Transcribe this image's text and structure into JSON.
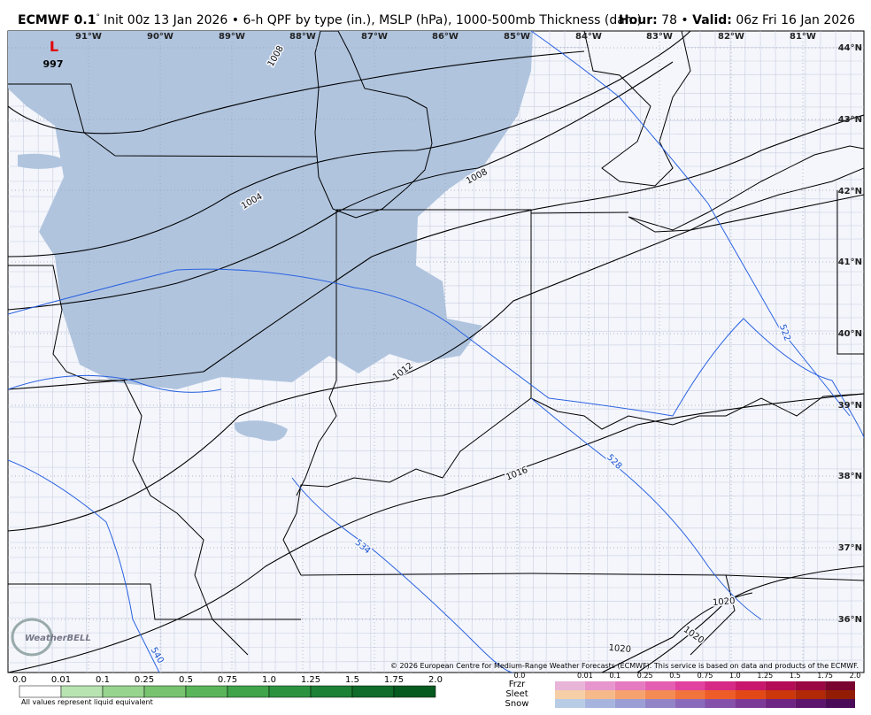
{
  "header": {
    "model": "ECMWF 0.1",
    "degree": "°",
    "title": "Init 00z 13 Jan 2026 • 6-h QPF by type (in.), MSLP (hPa), 1000-500mb Thickness (dam)",
    "hour_label": "Hour:",
    "hour": "78 •",
    "valid_label": "Valid:",
    "valid": "06z Fri 16 Jan 2026"
  },
  "map": {
    "longitudes": [
      "91°W",
      "90°W",
      "89°W",
      "88°W",
      "87°W",
      "86°W",
      "85°W",
      "84°W",
      "83°W",
      "82°W",
      "81°W"
    ],
    "latitudes": [
      "44°N",
      "43°N",
      "42°N",
      "41°N",
      "40°N",
      "39°N",
      "38°N",
      "37°N",
      "36°N"
    ],
    "low": {
      "symbol": "L",
      "pressure": "997"
    },
    "isobar_labels": [
      "1008",
      "1004",
      "1008",
      "1012",
      "1016",
      "1020",
      "1020",
      "1020"
    ],
    "thickness_labels": [
      "522",
      "528",
      "534",
      "540"
    ],
    "copyright": "© 2026 European Centre for Medium-Range Weather Forecasts (ECMWF). This service is based on data and products of the ECMWF.",
    "logo": "WeatherBELL"
  },
  "legend": {
    "qpf_ticks": [
      "0.0",
      "0.01",
      "0.1",
      "0.25",
      "0.5",
      "0.75",
      "1.0",
      "1.25",
      "1.5",
      "1.75",
      "2.0"
    ],
    "note": "All values represent liquid equivalent",
    "types": [
      "Frzr",
      "Sleet",
      "Snow"
    ],
    "type_ticks": [
      "0.0",
      "0.01",
      "0.1",
      "0.25",
      "0.5",
      "0.75",
      "1.0",
      "1.25",
      "1.5",
      "1.75",
      "2.0"
    ]
  }
}
